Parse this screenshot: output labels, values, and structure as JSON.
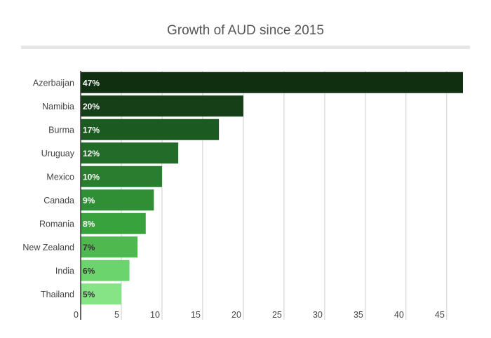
{
  "chart_data": {
    "type": "bar",
    "orientation": "horizontal",
    "title": "Growth of AUD since 2015",
    "categories": [
      "Azerbaijan",
      "Namibia",
      "Burma",
      "Uruguay",
      "Mexico",
      "Canada",
      "Romania",
      "New Zealand",
      "India",
      "Thailand"
    ],
    "values": [
      47,
      20,
      17,
      12,
      10,
      9,
      8,
      7,
      6,
      5
    ],
    "data_labels": [
      "47%",
      "20%",
      "17%",
      "12%",
      "10%",
      "9%",
      "8%",
      "7%",
      "6%",
      "5%"
    ],
    "bar_colors": [
      "#0f2f10",
      "#163f17",
      "#1b5a20",
      "#236b28",
      "#2a7d2e",
      "#2f8f34",
      "#38a23c",
      "#4fb84f",
      "#6cd46c",
      "#86e386"
    ],
    "label_colors": [
      "#ffffff",
      "#ffffff",
      "#ffffff",
      "#ffffff",
      "#ffffff",
      "#ffffff",
      "#ffffff",
      "#333333",
      "#333333",
      "#333333"
    ],
    "x_ticks": [
      0,
      5,
      10,
      15,
      20,
      25,
      30,
      35,
      40,
      45
    ],
    "xlim": [
      0,
      47
    ],
    "xlabel": "",
    "ylabel": "",
    "grid": true,
    "legend": "none"
  }
}
